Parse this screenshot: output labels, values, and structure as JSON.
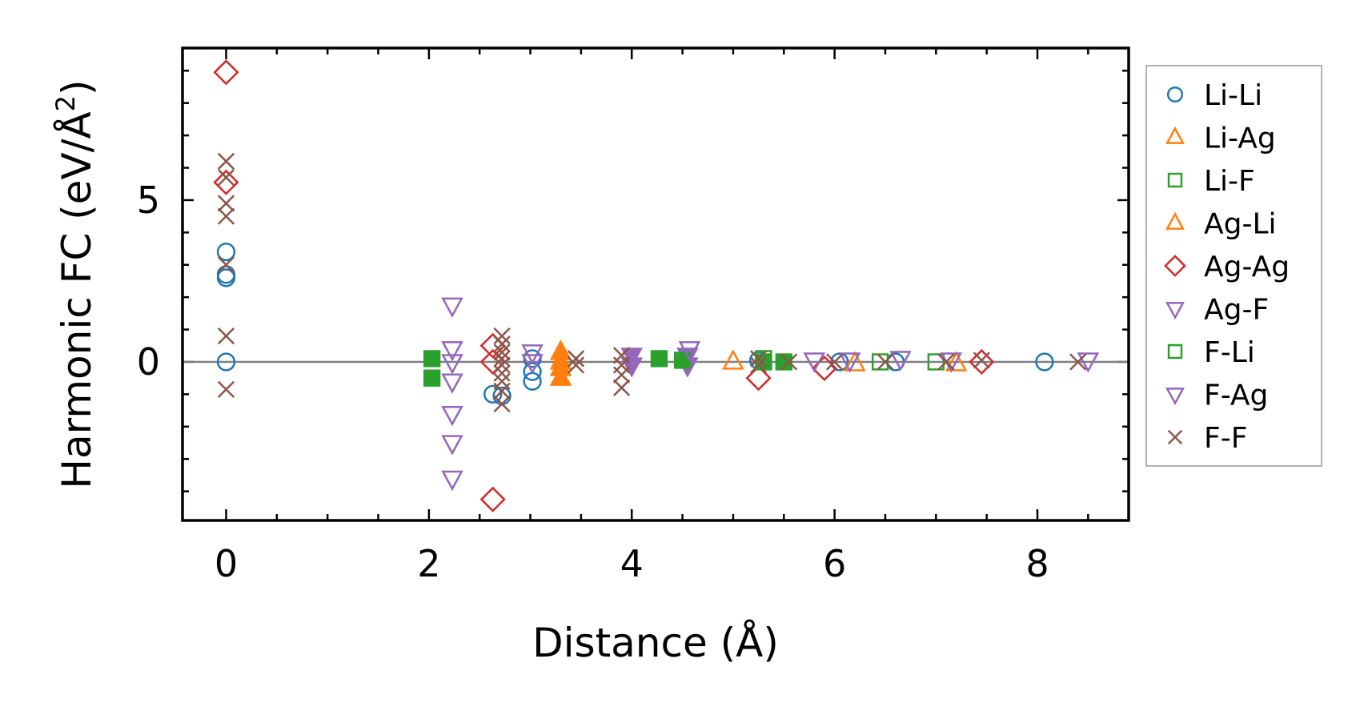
{
  "chart_data": {
    "type": "scatter",
    "xlabel": "Distance (Å)",
    "ylabel_main": "Harmonic FC (eV/Å",
    "ylabel_sup": "2",
    "ylabel_end": ")",
    "xlim": [
      -0.43,
      8.9
    ],
    "ylim": [
      -4.9,
      9.7
    ],
    "xticks": [
      0,
      2,
      4,
      6,
      8
    ],
    "yticks": [
      0,
      5
    ],
    "zero_line": true,
    "legend_position": "right",
    "series": [
      {
        "name": "Li-Li",
        "marker": "circle",
        "color": "#1f77b4",
        "filled": false,
        "points": [
          [
            0,
            3.4
          ],
          [
            0,
            2.6
          ],
          [
            0,
            2.7
          ],
          [
            0,
            0
          ],
          [
            2.63,
            -1.0
          ],
          [
            2.72,
            -1.05
          ],
          [
            3.02,
            0.1
          ],
          [
            3.02,
            -0.3
          ],
          [
            3.02,
            -0.6
          ],
          [
            5.25,
            0.05
          ],
          [
            6.05,
            0
          ],
          [
            6.6,
            0
          ],
          [
            8.07,
            0
          ]
        ]
      },
      {
        "name": "Li-Ag",
        "marker": "triangle-up",
        "color": "#ff7f0e",
        "filled": false,
        "points": [
          [
            5.0,
            0
          ],
          [
            6.2,
            -0.05
          ],
          [
            7.2,
            -0.05
          ]
        ]
      },
      {
        "name": "Li-F",
        "marker": "square",
        "color": "#2ca02c",
        "filled": false,
        "points": [
          [
            5.3,
            0.1
          ],
          [
            6.45,
            0
          ],
          [
            7.0,
            0
          ]
        ]
      },
      {
        "name": "Ag-Li",
        "marker": "triangle-up",
        "color": "#ff7f0e",
        "filled": true,
        "points": [
          [
            3.3,
            0.3
          ],
          [
            3.3,
            0
          ],
          [
            3.3,
            -0.2
          ],
          [
            3.3,
            -0.5
          ]
        ]
      },
      {
        "name": "Ag-Ag",
        "marker": "diamond",
        "color": "#d62728",
        "filled": false,
        "points": [
          [
            0,
            8.95
          ],
          [
            0,
            5.55
          ],
          [
            2.63,
            0.5
          ],
          [
            2.63,
            0
          ],
          [
            2.63,
            -4.25
          ],
          [
            5.25,
            -0.5
          ],
          [
            5.9,
            -0.2
          ],
          [
            7.45,
            0
          ]
        ]
      },
      {
        "name": "Ag-F",
        "marker": "triangle-down",
        "color": "#9467bd",
        "filled": true,
        "points": [
          [
            4.0,
            0.2
          ],
          [
            4.0,
            -0.1
          ],
          [
            4.55,
            0.2
          ],
          [
            4.55,
            -0.1
          ]
        ]
      },
      {
        "name": "F-Li",
        "marker": "square",
        "color": "#2ca02c",
        "filled": true,
        "points": [
          [
            2.03,
            0.1
          ],
          [
            2.03,
            -0.5
          ],
          [
            4.27,
            0.1
          ],
          [
            4.5,
            0.05
          ],
          [
            5.3,
            0
          ],
          [
            5.5,
            0
          ]
        ]
      },
      {
        "name": "F-Ag",
        "marker": "triangle-down",
        "color": "#9467bd",
        "filled": false,
        "points": [
          [
            2.23,
            1.75
          ],
          [
            2.23,
            0.4
          ],
          [
            2.23,
            0
          ],
          [
            2.23,
            -0.6
          ],
          [
            2.23,
            -1.6
          ],
          [
            2.23,
            -2.5
          ],
          [
            2.23,
            -3.6
          ],
          [
            3.02,
            0.3
          ],
          [
            3.02,
            0
          ],
          [
            4.57,
            0.4
          ],
          [
            5.8,
            0.05
          ],
          [
            6.15,
            0.05
          ],
          [
            6.65,
            0.1
          ],
          [
            7.15,
            0.05
          ],
          [
            8.5,
            0.05
          ]
        ]
      },
      {
        "name": "F-F",
        "marker": "x",
        "color": "#8c564b",
        "filled": false,
        "points": [
          [
            0,
            6.2
          ],
          [
            0,
            5.7
          ],
          [
            0,
            4.9
          ],
          [
            0,
            4.5
          ],
          [
            0,
            3.0
          ],
          [
            0,
            0.8
          ],
          [
            0,
            -0.85
          ],
          [
            2.72,
            0.8
          ],
          [
            2.72,
            0.55
          ],
          [
            2.72,
            0.3
          ],
          [
            2.72,
            0.1
          ],
          [
            2.72,
            -0.1
          ],
          [
            2.72,
            -0.35
          ],
          [
            2.72,
            -0.6
          ],
          [
            2.72,
            -0.9
          ],
          [
            2.72,
            -1.3
          ],
          [
            3.45,
            0.1
          ],
          [
            3.45,
            -0.1
          ],
          [
            3.9,
            0.2
          ],
          [
            3.9,
            -0.1
          ],
          [
            3.9,
            -0.4
          ],
          [
            3.9,
            -0.8
          ],
          [
            5.25,
            0.1
          ],
          [
            5.25,
            -0.1
          ],
          [
            5.55,
            0
          ],
          [
            6.0,
            0
          ],
          [
            6.5,
            0
          ],
          [
            7.1,
            0
          ],
          [
            7.45,
            0.05
          ],
          [
            8.4,
            0
          ]
        ]
      }
    ]
  }
}
